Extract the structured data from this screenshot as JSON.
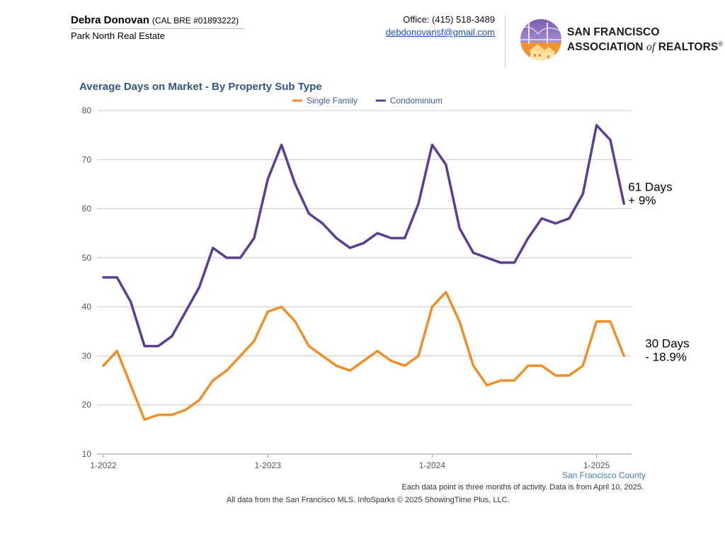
{
  "header": {
    "agent_name": "Debra Donovan",
    "license": "(CAL BRE #01893222)",
    "company": "Park North Real Estate",
    "office": "Office: (415) 518-3489",
    "email": "debdonovansf@gmail.com"
  },
  "logo": {
    "line1": "SAN FRANCISCO",
    "line2_prefix": "ASSOCIATION ",
    "line2_of": "of",
    "line2_suffix": " REALTORS",
    "reg_mark": "®",
    "colors": {
      "purple": "#6b4c9a",
      "orange": "#f0932b",
      "gold": "#f7c35a"
    }
  },
  "chart_data": {
    "type": "line",
    "title": "Average Days on Market - By Property Sub Type",
    "xlabel": "",
    "ylabel": "",
    "ylim": [
      10,
      80
    ],
    "yticks": [
      10,
      20,
      30,
      40,
      50,
      60,
      70,
      80
    ],
    "xticks": [
      {
        "label": "1-2022",
        "index": 0
      },
      {
        "label": "1-2023",
        "index": 12
      },
      {
        "label": "1-2024",
        "index": 24
      },
      {
        "label": "1-2025",
        "index": 36
      }
    ],
    "grid": true,
    "legend_position": "top-center",
    "series": [
      {
        "name": "Single Family",
        "color": "#ee8f2a",
        "values": [
          28,
          31,
          24,
          17,
          18,
          18,
          19,
          21,
          25,
          27,
          30,
          33,
          39,
          40,
          37,
          32,
          30,
          28,
          27,
          29,
          31,
          29,
          28,
          30,
          40,
          43,
          37,
          28,
          24,
          25,
          25,
          28,
          28,
          26,
          26,
          28,
          37,
          37,
          30
        ]
      },
      {
        "name": "Condominium",
        "color": "#5b3e91",
        "values": [
          46,
          46,
          41,
          32,
          32,
          34,
          39,
          44,
          52,
          50,
          50,
          54,
          66,
          73,
          65,
          59,
          57,
          54,
          52,
          53,
          55,
          54,
          54,
          61,
          73,
          69,
          56,
          51,
          50,
          49,
          49,
          54,
          58,
          57,
          58,
          63,
          77,
          74,
          61
        ]
      }
    ],
    "annotations": [
      {
        "series": "Condominium",
        "line1": "61 Days",
        "line2": "+ 9%"
      },
      {
        "series": "Single Family",
        "line1": "30 Days",
        "line2": "- 18.9%"
      }
    ]
  },
  "footer": {
    "county": "San Francisco County",
    "note": "Each data point is three months of activity. Data is from April 10, 2025.",
    "source": "All data from the San Francisco MLS. InfoSparks © 2025 ShowingTime Plus, LLC."
  }
}
